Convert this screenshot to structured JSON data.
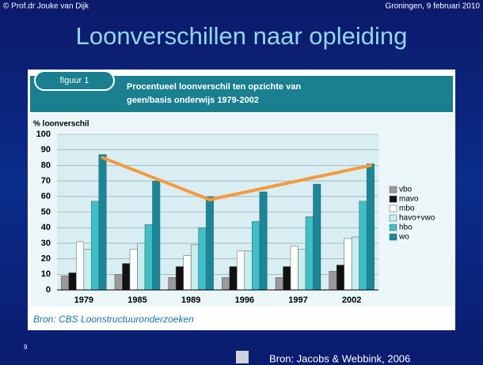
{
  "slide": {
    "author": "© Prof.dr Jouke van Dijk",
    "place_date": "Groningen, 9 februari 2010",
    "title": "Loonverschillen naar opleiding",
    "page": "9",
    "footer_source": "Bron: Jacobs & Webbink, 2006"
  },
  "chart_data": {
    "type": "bar",
    "tab": "figuur 1",
    "title": [
      "Procentueel loonverschil ten opzichte van",
      "geen/basis onderwijs 1979-2002"
    ],
    "y_label": "% loonverschil",
    "source": "Bron: CBS Loonstructuuronderzoeken",
    "categories": [
      "1979",
      "1985",
      "1989",
      "1996",
      "1997",
      "2002"
    ],
    "series": [
      {
        "name": "vbo",
        "color": "#9a9a9a",
        "values": [
          9,
          10,
          8,
          8,
          8,
          12
        ]
      },
      {
        "name": "mavo",
        "color": "#111111",
        "values": [
          11,
          17,
          15,
          15,
          15,
          16
        ]
      },
      {
        "name": "mbo",
        "color": "#ffffff",
        "values": [
          31,
          26,
          22,
          25,
          28,
          33
        ]
      },
      {
        "name": "havo+vwo",
        "color": "#c6eef0",
        "values": [
          26,
          30,
          29,
          25,
          26,
          34
        ]
      },
      {
        "name": "hbo",
        "color": "#3cc0c8",
        "values": [
          57,
          42,
          40,
          44,
          47,
          57
        ]
      },
      {
        "name": "wo",
        "color": "#17889a",
        "values": [
          87,
          70,
          60,
          63,
          68,
          81
        ]
      }
    ],
    "trend_line": {
      "color": "#f59a3a",
      "values": [
        85,
        null,
        58,
        null,
        null,
        80
      ]
    },
    "ylim": [
      0,
      100
    ],
    "yticks": [
      0,
      10,
      20,
      30,
      40,
      50,
      60,
      70,
      80,
      90,
      100
    ],
    "grid": true
  }
}
